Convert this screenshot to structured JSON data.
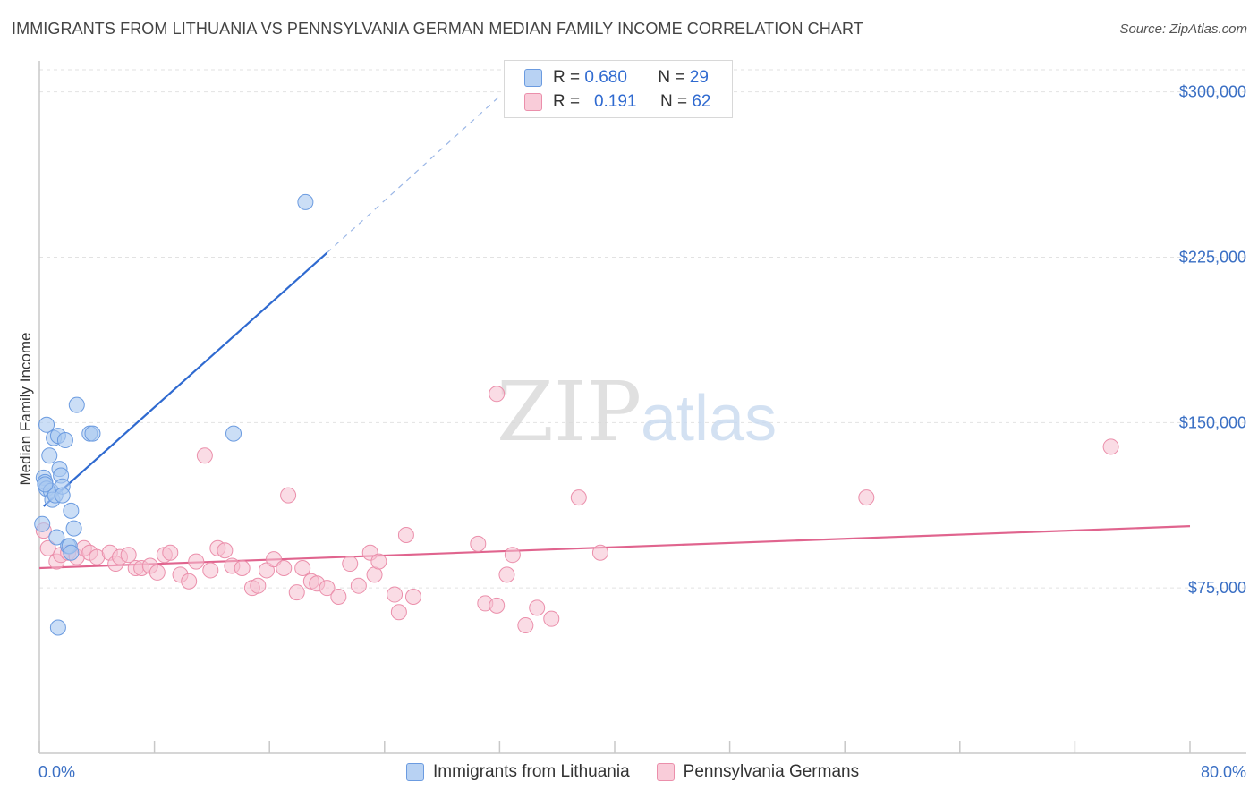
{
  "chart_data": {
    "type": "scatter",
    "title": "IMMIGRANTS FROM LITHUANIA VS PENNSYLVANIA GERMAN MEDIAN FAMILY INCOME CORRELATION CHART",
    "source": "Source: ZipAtlas.com",
    "watermark": "ZIPatlas",
    "watermark_parts": {
      "zip": "ZIP",
      "atlas": "atlas"
    },
    "xlabel": "",
    "ylabel": "Median Family Income",
    "xlim": [
      0,
      80
    ],
    "ylim": [
      0,
      310000
    ],
    "x_tick_labels": {
      "min": "0.0%",
      "max": "80.0%"
    },
    "x_minor_ticks": [
      0,
      8,
      16,
      24,
      32,
      40,
      48,
      56,
      64,
      72,
      80
    ],
    "y_ticks": [
      {
        "value": 75000,
        "label": "$75,000"
      },
      {
        "value": 150000,
        "label": "$150,000"
      },
      {
        "value": 225000,
        "label": "$225,000"
      },
      {
        "value": 300000,
        "label": "$300,000"
      }
    ],
    "grid": true,
    "colors": {
      "blue_fill": "#a9c8f0",
      "blue_stroke": "#6b9be0",
      "blue_line": "#2f6ad0",
      "pink_fill": "#f6bfd0",
      "pink_stroke": "#eb8fab",
      "pink_line": "#e0648e",
      "grid": "#e2e2e2",
      "axis": "#c8c8c8",
      "tick_text": "#3a6fc4"
    },
    "series": [
      {
        "name": "Immigrants from Lithuania",
        "R": "0.680",
        "N": "29",
        "trend": {
          "x0": 0.3,
          "y0": 112000,
          "x1": 20.0,
          "y1": 227000,
          "x_dash_end": 32.0,
          "y_dash_end": 298000
        },
        "points": [
          [
            0.2,
            104000
          ],
          [
            0.3,
            125000
          ],
          [
            0.4,
            123000
          ],
          [
            0.5,
            120000
          ],
          [
            0.5,
            149000
          ],
          [
            0.7,
            135000
          ],
          [
            0.8,
            119000
          ],
          [
            0.9,
            115000
          ],
          [
            1.0,
            143000
          ],
          [
            1.1,
            117000
          ],
          [
            1.2,
            98000
          ],
          [
            1.3,
            144000
          ],
          [
            1.4,
            129000
          ],
          [
            1.5,
            126000
          ],
          [
            1.6,
            121000
          ],
          [
            1.6,
            117000
          ],
          [
            1.8,
            142000
          ],
          [
            2.0,
            94000
          ],
          [
            2.1,
            94000
          ],
          [
            2.2,
            91000
          ],
          [
            2.2,
            110000
          ],
          [
            2.4,
            102000
          ],
          [
            2.6,
            158000
          ],
          [
            3.5,
            145000
          ],
          [
            3.7,
            145000
          ],
          [
            1.3,
            57000
          ],
          [
            13.5,
            145000
          ],
          [
            18.5,
            250000
          ],
          [
            0.4,
            122000
          ]
        ]
      },
      {
        "name": "Pennsylvania Germans",
        "R": "0.191",
        "N": "62",
        "trend": {
          "x0": 0.0,
          "y0": 84000,
          "x1": 80.0,
          "y1": 103000
        },
        "points": [
          [
            0.3,
            101000
          ],
          [
            0.6,
            93000
          ],
          [
            1.2,
            87000
          ],
          [
            1.5,
            90000
          ],
          [
            2.0,
            91000
          ],
          [
            2.6,
            89000
          ],
          [
            3.1,
            93000
          ],
          [
            3.5,
            91000
          ],
          [
            4.0,
            89000
          ],
          [
            4.9,
            91000
          ],
          [
            5.3,
            86000
          ],
          [
            5.6,
            89000
          ],
          [
            6.2,
            90000
          ],
          [
            6.7,
            84000
          ],
          [
            7.1,
            84000
          ],
          [
            7.7,
            85000
          ],
          [
            8.2,
            82000
          ],
          [
            8.7,
            90000
          ],
          [
            9.1,
            91000
          ],
          [
            9.8,
            81000
          ],
          [
            10.4,
            78000
          ],
          [
            10.9,
            87000
          ],
          [
            11.5,
            135000
          ],
          [
            11.9,
            83000
          ],
          [
            12.4,
            93000
          ],
          [
            12.9,
            92000
          ],
          [
            13.4,
            85000
          ],
          [
            14.1,
            84000
          ],
          [
            14.8,
            75000
          ],
          [
            15.2,
            76000
          ],
          [
            15.8,
            83000
          ],
          [
            16.3,
            88000
          ],
          [
            17.0,
            84000
          ],
          [
            17.3,
            117000
          ],
          [
            17.9,
            73000
          ],
          [
            18.3,
            84000
          ],
          [
            18.9,
            78000
          ],
          [
            19.3,
            77000
          ],
          [
            20.0,
            75000
          ],
          [
            20.8,
            71000
          ],
          [
            21.6,
            86000
          ],
          [
            22.2,
            76000
          ],
          [
            23.0,
            91000
          ],
          [
            23.3,
            81000
          ],
          [
            23.6,
            87000
          ],
          [
            24.7,
            72000
          ],
          [
            25.0,
            64000
          ],
          [
            25.5,
            99000
          ],
          [
            26.0,
            71000
          ],
          [
            30.5,
            95000
          ],
          [
            31.0,
            68000
          ],
          [
            31.8,
            67000
          ],
          [
            31.8,
            163000
          ],
          [
            32.5,
            81000
          ],
          [
            32.9,
            90000
          ],
          [
            33.8,
            58000
          ],
          [
            34.6,
            66000
          ],
          [
            35.6,
            61000
          ],
          [
            37.5,
            116000
          ],
          [
            39.0,
            91000
          ],
          [
            57.5,
            116000
          ],
          [
            74.5,
            139000
          ]
        ]
      }
    ]
  }
}
